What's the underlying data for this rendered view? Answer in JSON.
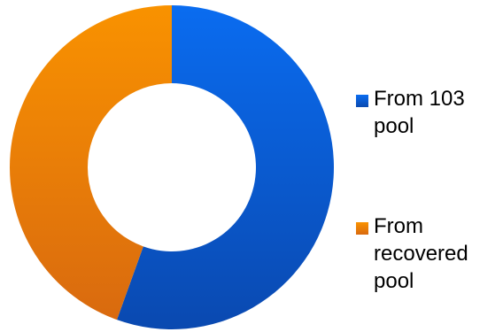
{
  "chart_data": {
    "type": "pie",
    "donut": true,
    "title": "",
    "legend_position": "right",
    "series": [
      {
        "name": "From 103 pool",
        "value": 55.5,
        "color_light": "#0a6cf0",
        "color_dark": "#0a49b0"
      },
      {
        "name": "From recovered pool",
        "value": 44.5,
        "color_light": "#f99200",
        "color_dark": "#d96a0f"
      }
    ]
  }
}
